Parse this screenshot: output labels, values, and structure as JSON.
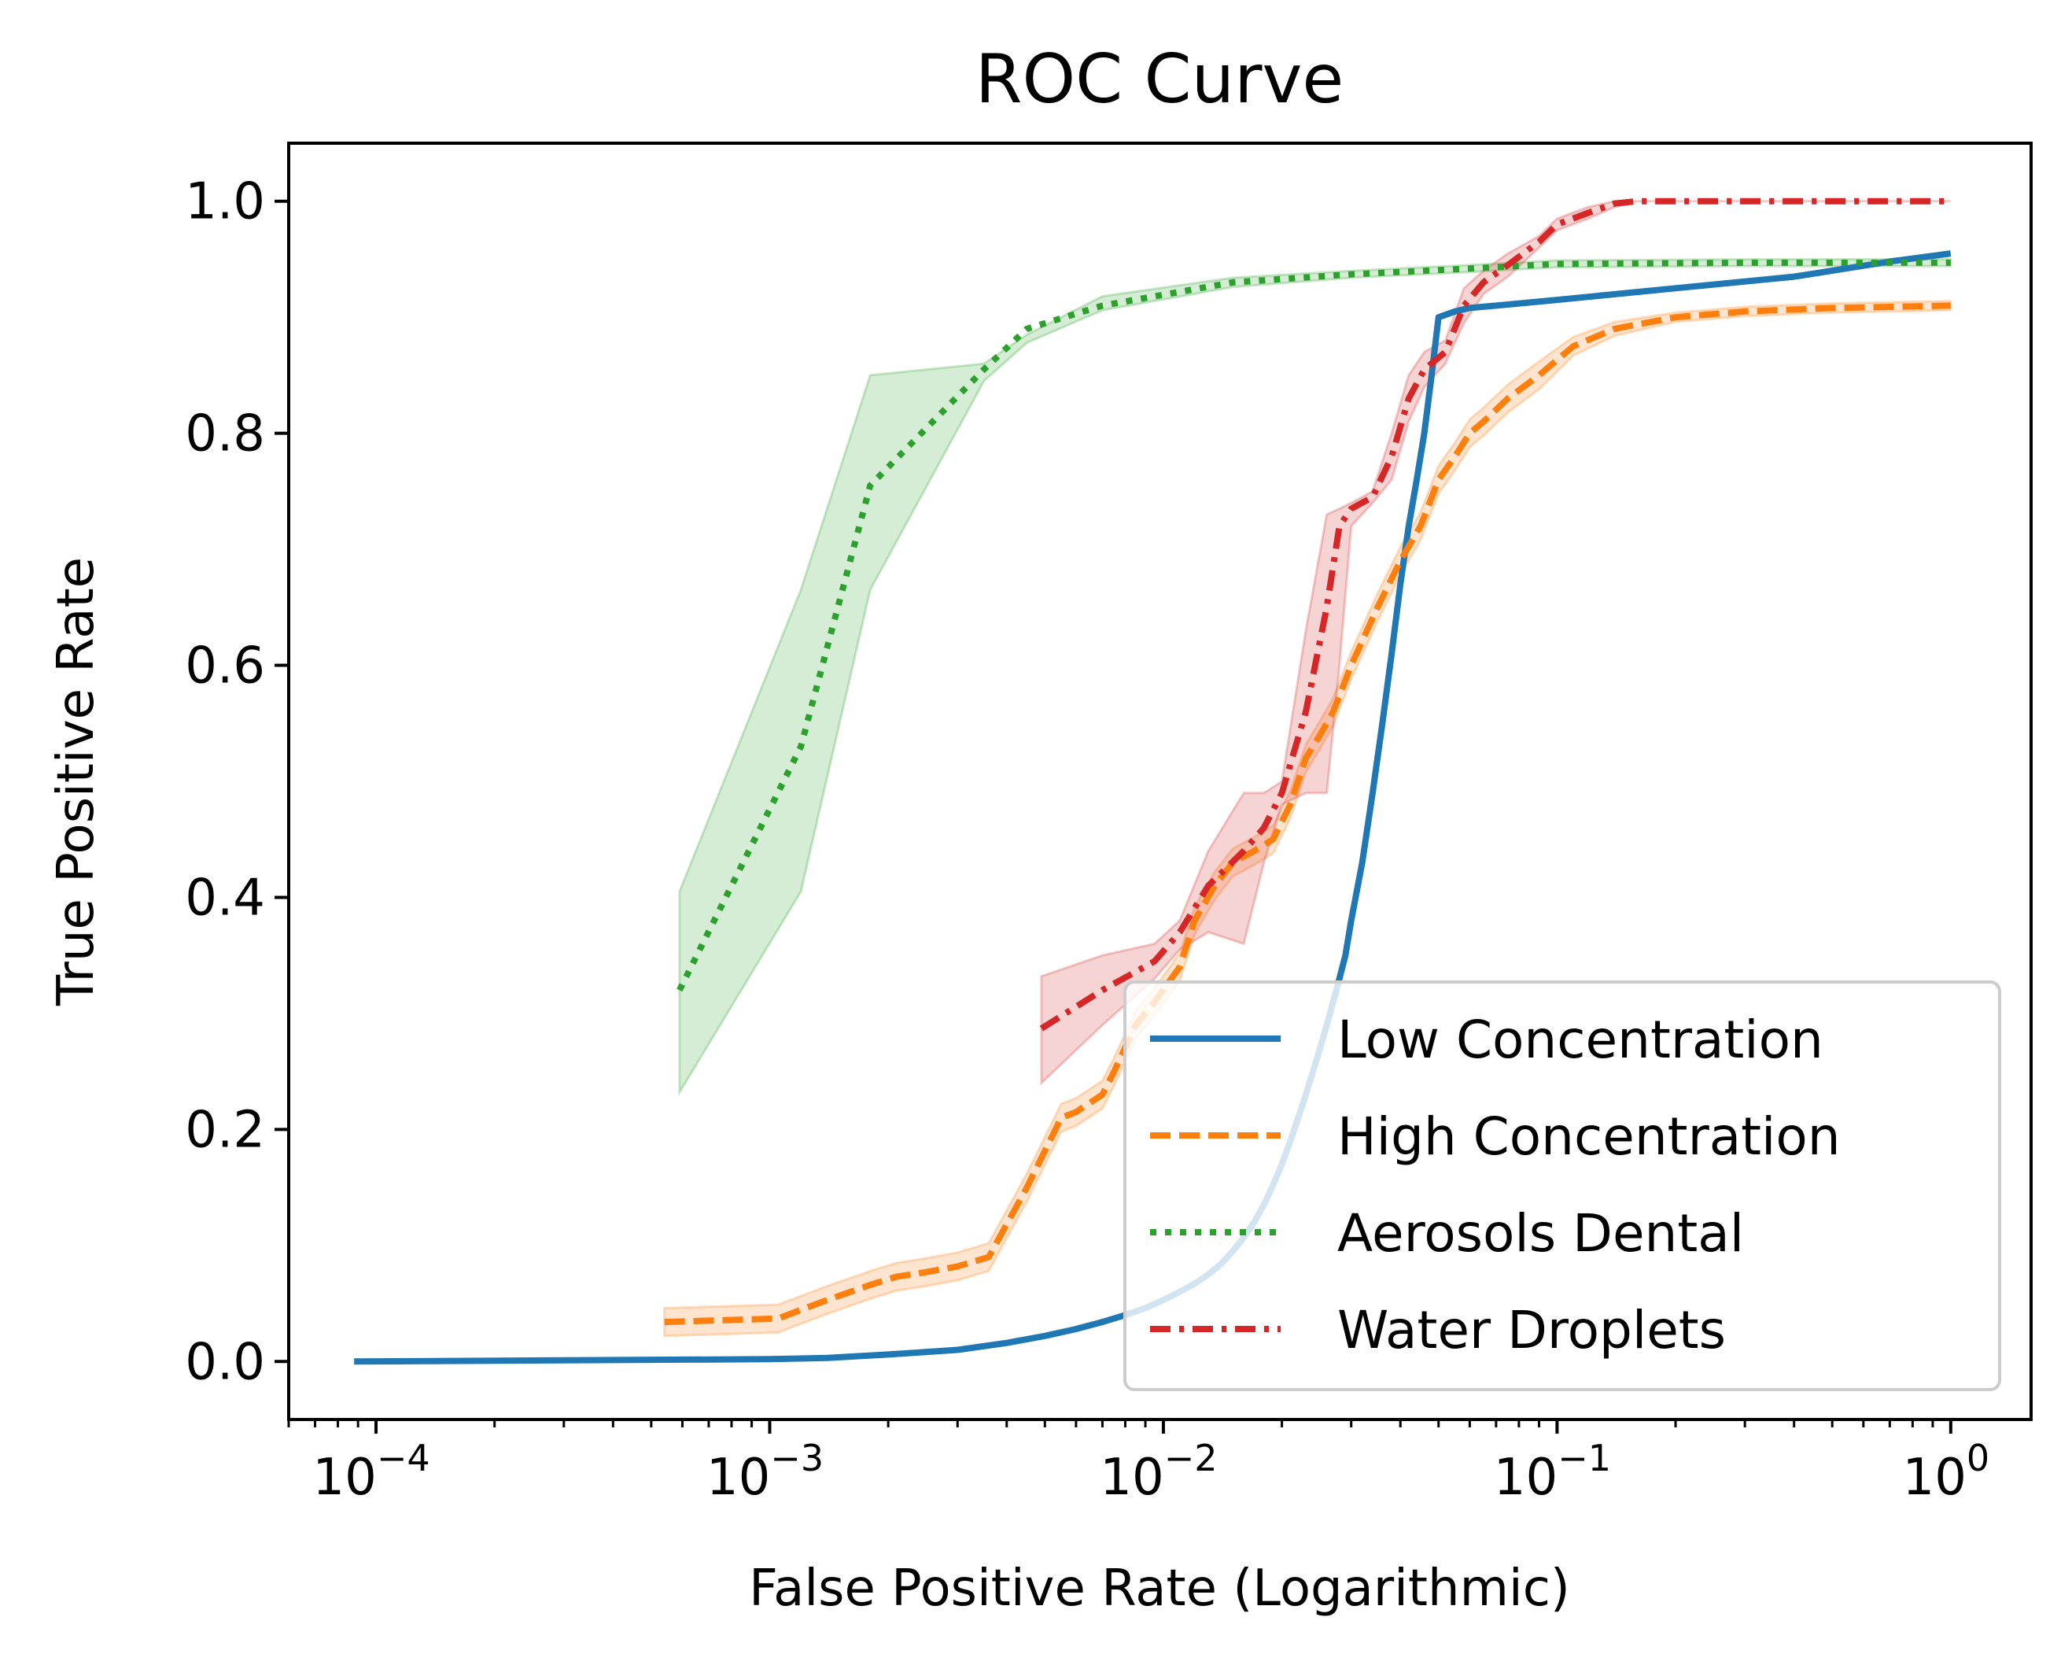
{
  "chart_data": {
    "type": "line",
    "title": "ROC Curve",
    "xlabel": "False Positive Rate (Logarithmic)",
    "ylabel": "True Positive Rate",
    "xscale": "log",
    "xlim": [
      6e-05,
      1.6
    ],
    "ylim": [
      -0.05,
      1.05
    ],
    "x_ticks": [
      {
        "value": 0.0001,
        "base": "10",
        "exp": "−4"
      },
      {
        "value": 0.001,
        "base": "10",
        "exp": "−3"
      },
      {
        "value": 0.01,
        "base": "10",
        "exp": "−2"
      },
      {
        "value": 0.1,
        "base": "10",
        "exp": "−1"
      },
      {
        "value": 1,
        "base": "10",
        "exp": "0"
      }
    ],
    "y_ticks": [
      {
        "value": 0.0,
        "label": "0.0"
      },
      {
        "value": 0.2,
        "label": "0.2"
      },
      {
        "value": 0.4,
        "label": "0.4"
      },
      {
        "value": 0.6,
        "label": "0.6"
      },
      {
        "value": 0.8,
        "label": "0.8"
      },
      {
        "value": 1.0,
        "label": "1.0"
      }
    ],
    "grid": false,
    "legend": {
      "position": "lower right"
    },
    "series": [
      {
        "name": "Low Concentration",
        "color": "#1f77b4",
        "dash": "solid",
        "x": [
          8.8e-05,
          0.0003,
          0.001,
          0.0014,
          0.002,
          0.003,
          0.004,
          0.005,
          0.006,
          0.007,
          0.008,
          0.009,
          0.01,
          0.011,
          0.012,
          0.013,
          0.014,
          0.015,
          0.016,
          0.017,
          0.018,
          0.019,
          0.02,
          0.021,
          0.022,
          0.023,
          0.024,
          0.025,
          0.026,
          0.027,
          0.028,
          0.029,
          0.03,
          0.032,
          0.034,
          0.036,
          0.038,
          0.04,
          0.042,
          0.044,
          0.046,
          0.048,
          0.05,
          0.052,
          0.055,
          0.06,
          0.07,
          0.1,
          0.2,
          0.4,
          0.7,
          1.0
        ],
        "y": [
          0.0,
          0.001,
          0.002,
          0.003,
          0.006,
          0.01,
          0.016,
          0.022,
          0.028,
          0.034,
          0.04,
          0.046,
          0.053,
          0.06,
          0.067,
          0.075,
          0.084,
          0.095,
          0.107,
          0.12,
          0.135,
          0.152,
          0.17,
          0.19,
          0.21,
          0.23,
          0.25,
          0.27,
          0.29,
          0.31,
          0.33,
          0.35,
          0.38,
          0.43,
          0.49,
          0.55,
          0.61,
          0.67,
          0.72,
          0.76,
          0.8,
          0.85,
          0.9,
          0.902,
          0.905,
          0.908,
          0.91,
          0.915,
          0.925,
          0.935,
          0.948,
          0.955
        ],
        "band": null
      },
      {
        "name": "High Concentration",
        "color": "#ff7f0e",
        "dash": "dashed",
        "x": [
          0.00054,
          0.00105,
          0.0014,
          0.0018,
          0.0021,
          0.0025,
          0.003,
          0.0036,
          0.0045,
          0.0055,
          0.006,
          0.007,
          0.0075,
          0.0085,
          0.0095,
          0.011,
          0.012,
          0.0135,
          0.015,
          0.017,
          0.019,
          0.021,
          0.023,
          0.025,
          0.027,
          0.03,
          0.035,
          0.04,
          0.045,
          0.05,
          0.055,
          0.06,
          0.065,
          0.075,
          0.09,
          0.11,
          0.14,
          0.2,
          0.3,
          0.5,
          1.0
        ],
        "y": [
          0.034,
          0.037,
          0.053,
          0.066,
          0.073,
          0.077,
          0.082,
          0.09,
          0.15,
          0.21,
          0.215,
          0.23,
          0.25,
          0.29,
          0.31,
          0.34,
          0.38,
          0.41,
          0.43,
          0.44,
          0.45,
          0.48,
          0.52,
          0.54,
          0.56,
          0.6,
          0.65,
          0.69,
          0.72,
          0.76,
          0.78,
          0.8,
          0.81,
          0.83,
          0.85,
          0.875,
          0.89,
          0.9,
          0.905,
          0.908,
          0.91
        ],
        "band": [
          0.012,
          0.012,
          0.012,
          0.012,
          0.012,
          0.012,
          0.012,
          0.012,
          0.012,
          0.012,
          0.012,
          0.012,
          0.012,
          0.012,
          0.012,
          0.012,
          0.012,
          0.012,
          0.012,
          0.012,
          0.012,
          0.012,
          0.012,
          0.012,
          0.012,
          0.012,
          0.012,
          0.012,
          0.012,
          0.012,
          0.012,
          0.012,
          0.012,
          0.012,
          0.012,
          0.008,
          0.006,
          0.004,
          0.004,
          0.004,
          0.004
        ]
      },
      {
        "name": "Aerosols Dental",
        "color": "#2ca02c",
        "dash": "dotted",
        "x": [
          0.00059,
          0.0012,
          0.0018,
          0.0035,
          0.0045,
          0.007,
          0.015,
          0.03,
          0.06,
          0.1,
          0.3,
          1.0
        ],
        "y": [
          0.32,
          0.53,
          0.755,
          0.855,
          0.89,
          0.91,
          0.93,
          0.937,
          0.942,
          0.946,
          0.947,
          0.947
        ],
        "y_upper": [
          0.405,
          0.665,
          0.85,
          0.86,
          0.885,
          0.918,
          0.934,
          0.94,
          0.945,
          0.949,
          0.95,
          0.95
        ],
        "y_lower": [
          0.232,
          0.405,
          0.665,
          0.845,
          0.878,
          0.906,
          0.926,
          0.934,
          0.939,
          0.943,
          0.944,
          0.944
        ]
      },
      {
        "name": "Water Droplets",
        "color": "#d62728",
        "dash": "dashdot",
        "x": [
          0.0049,
          0.007,
          0.0095,
          0.011,
          0.013,
          0.016,
          0.018,
          0.02,
          0.023,
          0.026,
          0.028,
          0.03,
          0.034,
          0.038,
          0.042,
          0.046,
          0.052,
          0.058,
          0.065,
          0.075,
          0.09,
          0.1,
          0.12,
          0.14,
          0.16,
          0.3,
          0.6,
          1.0
        ],
        "y": [
          0.287,
          0.32,
          0.345,
          0.37,
          0.41,
          0.44,
          0.46,
          0.49,
          0.56,
          0.65,
          0.72,
          0.735,
          0.745,
          0.78,
          0.83,
          0.855,
          0.87,
          0.91,
          0.93,
          0.945,
          0.965,
          0.98,
          0.99,
          0.998,
          1.0,
          1.0,
          1.0,
          1.0
        ],
        "y_upper": [
          0.332,
          0.35,
          0.36,
          0.38,
          0.44,
          0.49,
          0.49,
          0.5,
          0.63,
          0.73,
          0.735,
          0.74,
          0.75,
          0.8,
          0.85,
          0.87,
          0.88,
          0.925,
          0.94,
          0.955,
          0.97,
          0.985,
          0.995,
          1.0,
          1.0,
          1.0,
          1.0,
          1.0
        ],
        "y_lower": [
          0.24,
          0.29,
          0.33,
          0.355,
          0.37,
          0.36,
          0.43,
          0.48,
          0.49,
          0.49,
          0.6,
          0.72,
          0.74,
          0.76,
          0.81,
          0.84,
          0.86,
          0.895,
          0.92,
          0.935,
          0.96,
          0.975,
          0.985,
          0.995,
          1.0,
          1.0,
          1.0,
          1.0
        ]
      }
    ]
  }
}
